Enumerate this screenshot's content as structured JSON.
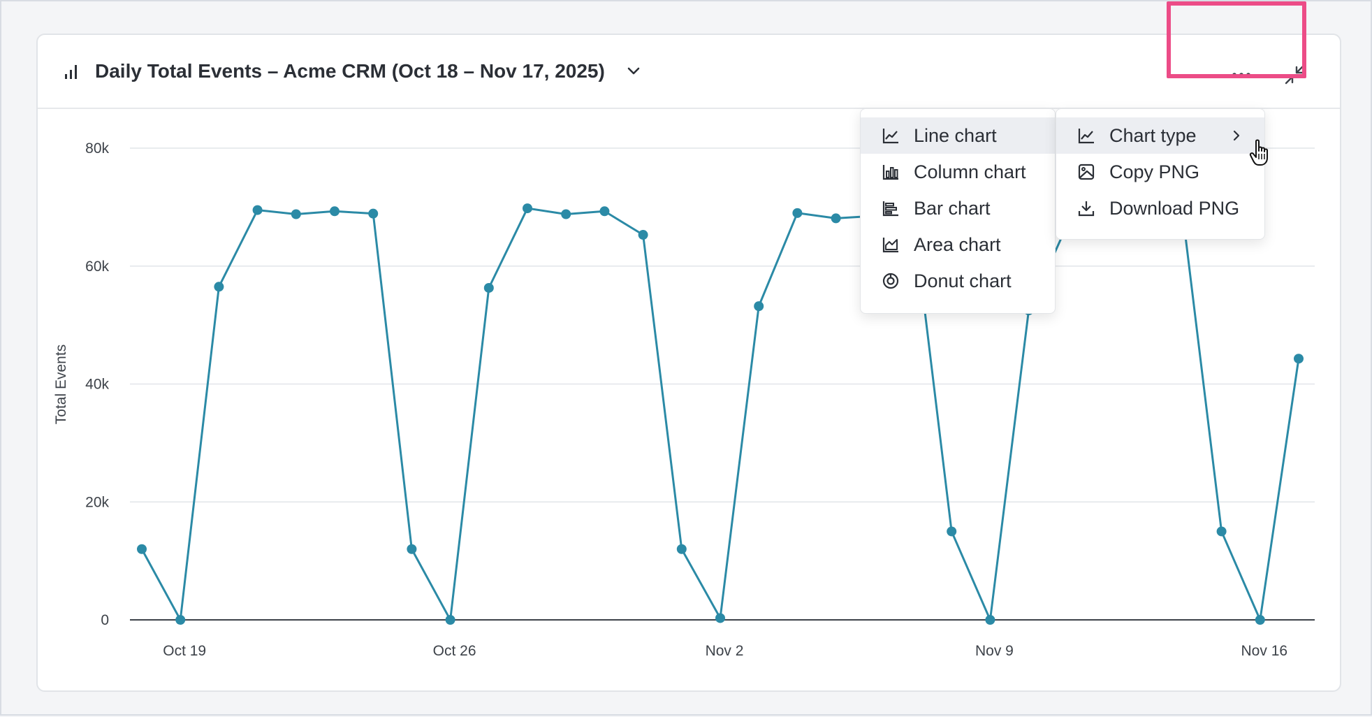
{
  "card": {
    "title": "Daily Total Events – Acme CRM (Oct 18 – Nov 17, 2025)",
    "title_icon": "bar-chart-icon",
    "title_dropdown_icon": "chevron-down-icon",
    "actions": [
      {
        "name": "more-options",
        "icon": "more-horizontal-icon"
      },
      {
        "name": "collapse",
        "icon": "minimize-arrows-icon"
      }
    ]
  },
  "chart_type_menu": {
    "items": [
      {
        "label": "Line chart",
        "icon": "line-chart-icon",
        "active": true
      },
      {
        "label": "Column chart",
        "icon": "column-chart-icon",
        "active": false
      },
      {
        "label": "Bar chart",
        "icon": "bar-chart-horizontal-icon",
        "active": false
      },
      {
        "label": "Area chart",
        "icon": "area-chart-icon",
        "active": false
      },
      {
        "label": "Donut chart",
        "icon": "donut-chart-icon",
        "active": false
      }
    ]
  },
  "options_menu": {
    "items": [
      {
        "label": "Chart type",
        "icon": "line-chart-icon",
        "has_submenu": true,
        "active": true
      },
      {
        "label": "Copy PNG",
        "icon": "image-icon",
        "has_submenu": false,
        "active": false
      },
      {
        "label": "Download PNG",
        "icon": "download-icon",
        "has_submenu": false,
        "active": false
      }
    ]
  },
  "colors": {
    "series": "#2b8aa6",
    "highlight": "#ec4c87",
    "grid": "#e2e5e9",
    "axis_text": "#3d4249"
  },
  "chart_data": {
    "type": "line",
    "ylabel": "Total Events",
    "xlabel": "",
    "ylim": [
      0,
      80000
    ],
    "y_ticks": [
      {
        "value": 0,
        "label": "0"
      },
      {
        "value": 20000,
        "label": "20k"
      },
      {
        "value": 40000,
        "label": "40k"
      },
      {
        "value": 60000,
        "label": "60k"
      },
      {
        "value": 80000,
        "label": "80k"
      }
    ],
    "x_ticks": [
      "Oct 19",
      "Oct 26",
      "Nov 2",
      "Nov 9",
      "Nov 16"
    ],
    "x": [
      "Oct 18",
      "Oct 19",
      "Oct 20",
      "Oct 21",
      "Oct 22",
      "Oct 23",
      "Oct 24",
      "Oct 25",
      "Oct 26",
      "Oct 27",
      "Oct 28",
      "Oct 29",
      "Oct 30",
      "Oct 31",
      "Nov 1",
      "Nov 2",
      "Nov 3",
      "Nov 4",
      "Nov 5",
      "Nov 6",
      "Nov 7",
      "Nov 8",
      "Nov 9",
      "Nov 10",
      "Nov 11",
      "Nov 12",
      "Nov 13",
      "Nov 14",
      "Nov 15",
      "Nov 16",
      "Nov 17"
    ],
    "values": [
      12000,
      0,
      56500,
      69500,
      68800,
      69300,
      68900,
      12000,
      0,
      56300,
      69800,
      68800,
      69300,
      65300,
      12000,
      300,
      53200,
      69000,
      68100,
      68500,
      68800,
      15000,
      0,
      52500,
      67000,
      68500,
      68800,
      68500,
      15000,
      0,
      44300
    ],
    "grid": true,
    "legend": "none"
  }
}
